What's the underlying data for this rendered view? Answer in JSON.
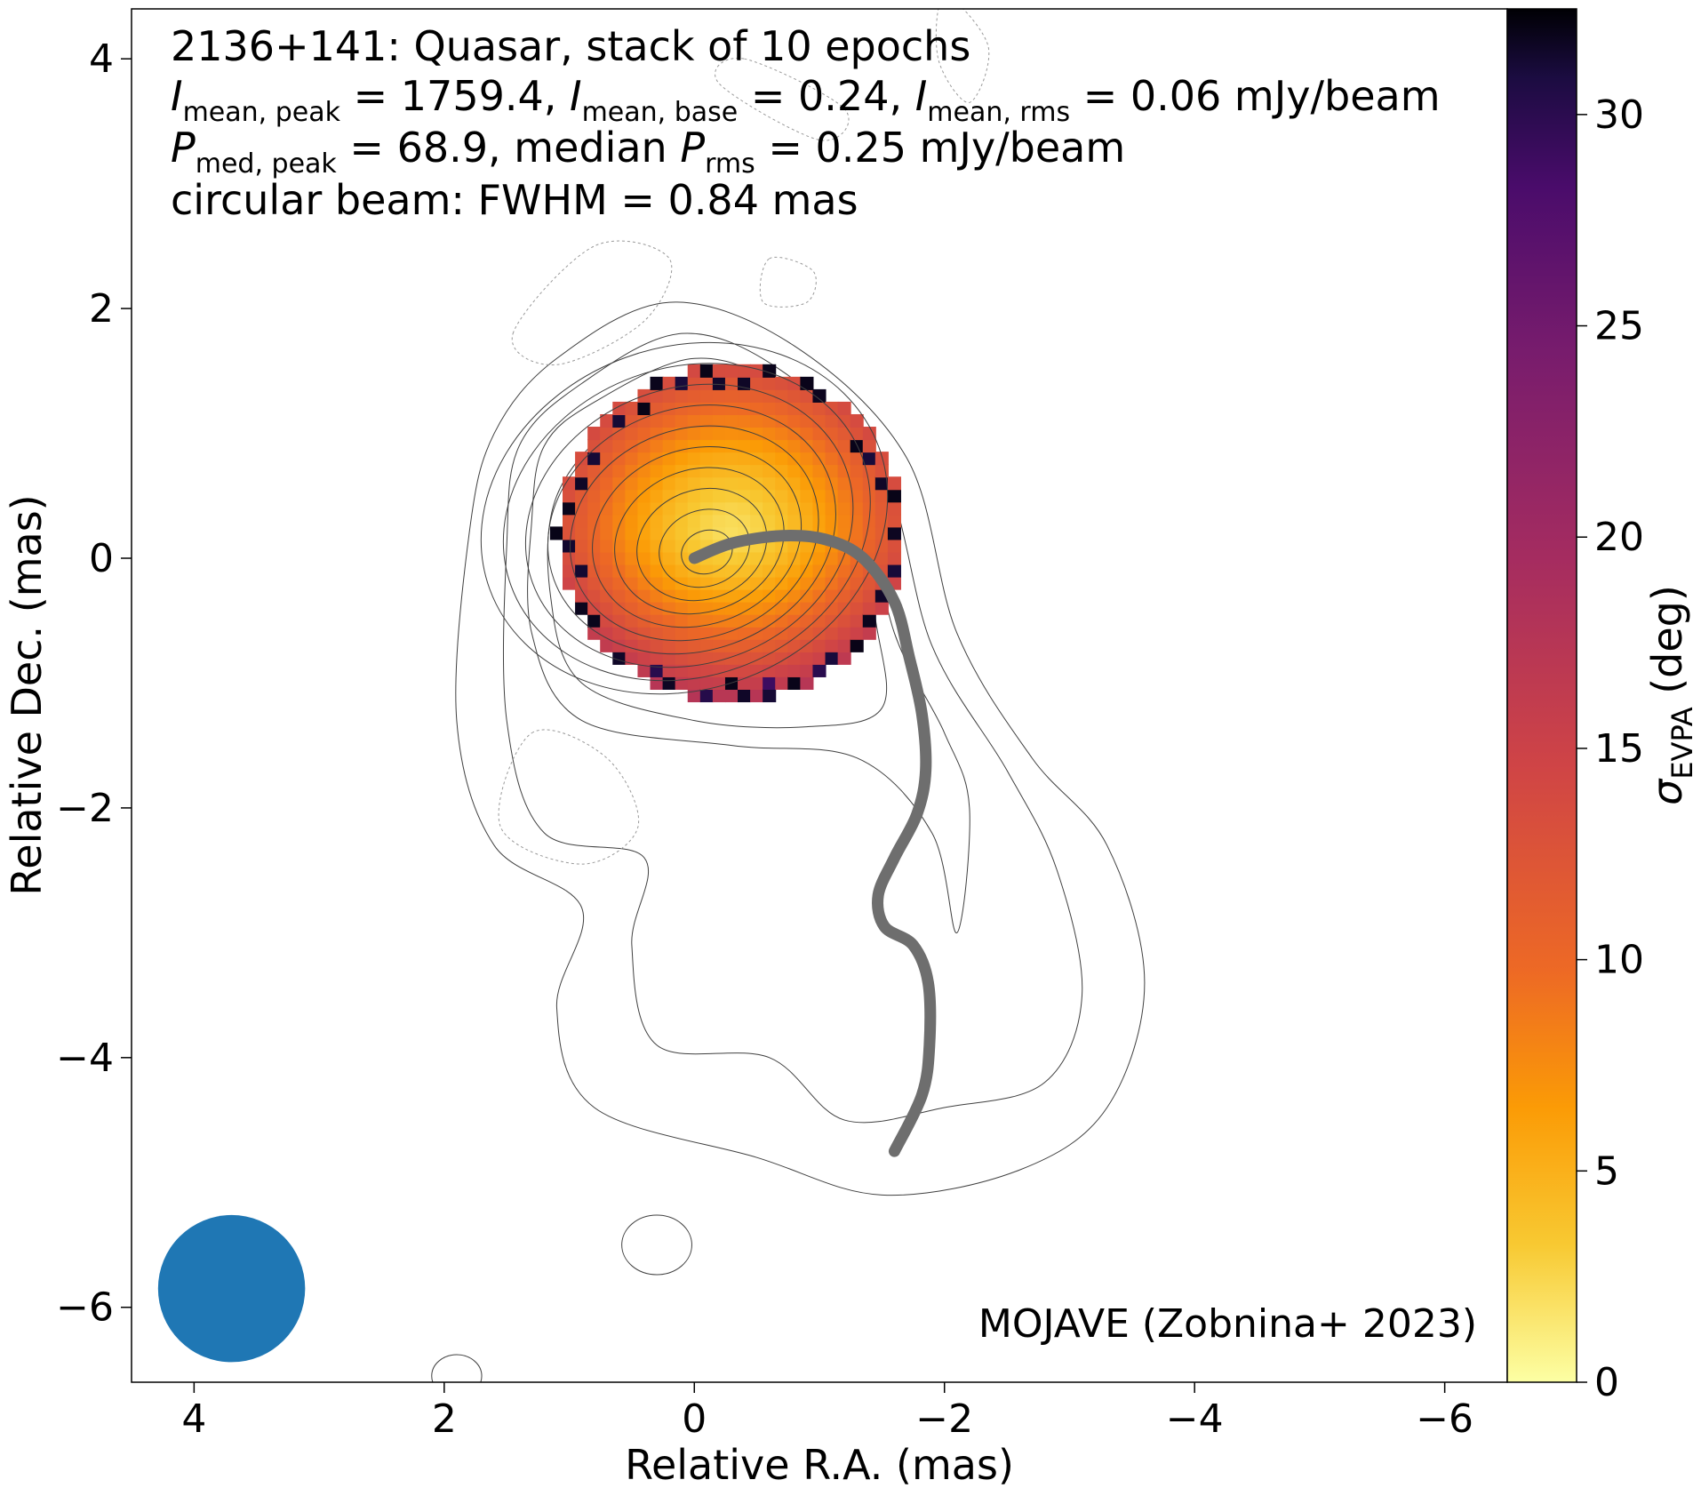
{
  "chart_data": {
    "type": "heatmap",
    "title_lines": [
      "2136+141: Quasar, stack of 10 epochs",
      "I_mean,peak = 1759.4, I_mean,base = 0.24, I_mean,rms = 0.06 mJy/beam",
      "P_med,peak = 68.9, median P_rms = 0.25 mJy/beam",
      "circular beam: FWHM = 0.84 mas"
    ],
    "info": {
      "line1": "2136+141: Quasar, stack of 10 epochs",
      "line2": {
        "i_peak_sub": "mean, peak",
        "i_peak_val": " = 1759.4, ",
        "i_base_sub": "mean, base",
        "i_base_val": " = 0.24, ",
        "i_rms_sub": "mean, rms",
        "i_rms_val": " = 0.06 mJy/beam"
      },
      "line3": {
        "p_peak_sub": "med, peak",
        "p_peak_val": " = 68.9, median ",
        "p_rms_sub": "rms",
        "p_rms_val": " = 0.25 mJy/beam"
      },
      "line4": "circular beam: FWHM = 0.84 mas"
    },
    "credit": "MOJAVE (Zobnina+ 2023)",
    "xlabel": "Relative R.A. (mas)",
    "ylabel": "Relative Dec. (mas)",
    "xlim": [
      4.5,
      -6.5
    ],
    "ylim": [
      -6.6,
      4.4
    ],
    "xticks": [
      4,
      2,
      0,
      -2,
      -4,
      -6
    ],
    "yticks": [
      4,
      2,
      0,
      -2,
      -4,
      -6
    ],
    "xtick_labels": [
      "4",
      "2",
      "0",
      "−2",
      "−4",
      "−6"
    ],
    "ytick_labels": [
      "4",
      "2",
      "0",
      "−2",
      "−4",
      "−6"
    ],
    "colorbar": {
      "label_symbol": "σ",
      "label_sub": "EVPA",
      "label_unit": " (deg)",
      "range": [
        0,
        32.5
      ],
      "ticks": [
        0,
        5,
        10,
        15,
        20,
        25,
        30
      ],
      "tick_labels": [
        "0",
        "5",
        "10",
        "15",
        "20",
        "25",
        "30"
      ],
      "colormap": "inferno_r"
    },
    "beam": {
      "fwhm_mas": 0.84,
      "center": [
        3.7,
        -5.85
      ],
      "color": "#1f77b4"
    },
    "ridge_line": {
      "color": "#6e6e6e",
      "points": [
        [
          0,
          0
        ],
        [
          -0.3,
          0.12
        ],
        [
          -0.7,
          0.18
        ],
        [
          -1.05,
          0.15
        ],
        [
          -1.35,
          0.0
        ],
        [
          -1.6,
          -0.35
        ],
        [
          -1.72,
          -0.8
        ],
        [
          -1.82,
          -1.25
        ],
        [
          -1.85,
          -1.7
        ],
        [
          -1.78,
          -2.05
        ],
        [
          -1.6,
          -2.4
        ],
        [
          -1.47,
          -2.7
        ],
        [
          -1.52,
          -2.95
        ],
        [
          -1.75,
          -3.1
        ],
        [
          -1.87,
          -3.4
        ],
        [
          -1.88,
          -3.9
        ],
        [
          -1.82,
          -4.3
        ],
        [
          -1.6,
          -4.75
        ]
      ]
    },
    "heatmap": {
      "center": [
        -0.25,
        0.15
      ],
      "radius_mas": 1.4,
      "value_range": [
        0,
        32.5
      ],
      "description_values": "sigma EVPA low (~2-5 deg) at core, rising to ~12-15 deg toward edge; a few high (~25-33 deg) pixels at rim"
    },
    "contours": {
      "core_center": [
        -0.1,
        0.05
      ],
      "levels_count": 13,
      "line_color": "#404040"
    },
    "grid": false
  }
}
